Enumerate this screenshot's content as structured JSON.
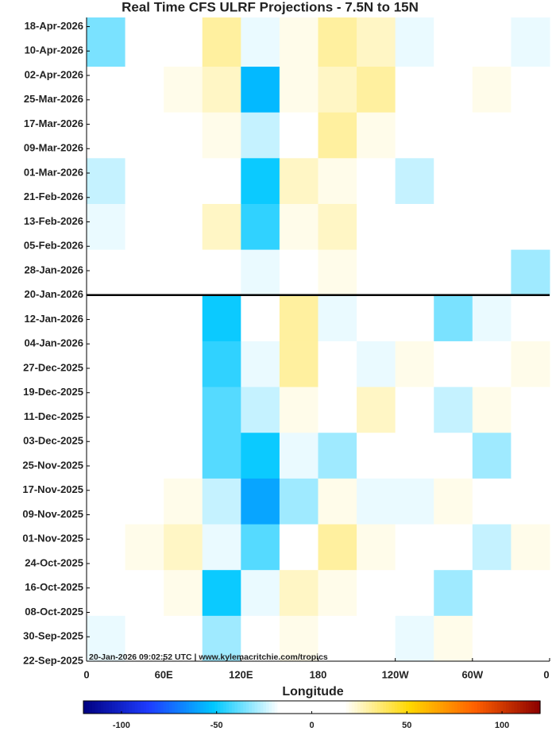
{
  "chart_data": {
    "type": "heatmap",
    "title": "Real Time CFS ULRF Projections - 7.5N to 15N",
    "x_label": "Longitude",
    "annotation": "20-Jan-2026 09:02:52 UTC | www.kylemacritchie.com/tropics",
    "xlim": [
      0,
      360
    ],
    "xticks": [
      0,
      {
        "value": 60,
        "label": "60E"
      },
      {
        "value": 120,
        "label": "120E"
      },
      180,
      {
        "value": 240,
        "label": "120W"
      },
      {
        "value": 300,
        "label": "60W"
      },
      {
        "value": 360,
        "label": "0"
      }
    ],
    "ylim": [
      "2025-09-22",
      "2026-04-21"
    ],
    "yticks": [
      {
        "value": "2025-09-22",
        "label": "22-Sep-2025"
      },
      {
        "value": "2025-09-30",
        "label": "30-Sep-2025"
      },
      {
        "value": "2025-10-08",
        "label": "08-Oct-2025"
      },
      {
        "value": "2025-10-16",
        "label": "16-Oct-2025"
      },
      {
        "value": "2025-10-24",
        "label": "24-Oct-2025"
      },
      {
        "value": "2025-11-01",
        "label": "01-Nov-2025"
      },
      {
        "value": "2025-11-09",
        "label": "09-Nov-2025"
      },
      {
        "value": "2025-11-17",
        "label": "17-Nov-2025"
      },
      {
        "value": "2025-11-25",
        "label": "25-Nov-2025"
      },
      {
        "value": "2025-12-03",
        "label": "03-Dec-2025"
      },
      {
        "value": "2025-12-11",
        "label": "11-Dec-2025"
      },
      {
        "value": "2025-12-19",
        "label": "19-Dec-2025"
      },
      {
        "value": "2025-12-27",
        "label": "27-Dec-2025"
      },
      {
        "value": "2026-01-04",
        "label": "04-Jan-2026"
      },
      {
        "value": "2026-01-12",
        "label": "12-Jan-2026"
      },
      {
        "value": "2026-01-20",
        "label": "20-Jan-2026"
      },
      {
        "value": "2026-01-28",
        "label": "28-Jan-2026"
      },
      {
        "value": "2026-02-05",
        "label": "05-Feb-2026"
      },
      {
        "value": "2026-02-13",
        "label": "13-Feb-2026"
      },
      {
        "value": "2026-02-21",
        "label": "21-Feb-2026"
      },
      {
        "value": "2026-03-01",
        "label": "01-Mar-2026"
      },
      {
        "value": "2026-03-09",
        "label": "09-Mar-2026"
      },
      {
        "value": "2026-03-17",
        "label": "17-Mar-2026"
      },
      {
        "value": "2026-03-25",
        "label": "25-Mar-2026"
      },
      {
        "value": "2026-04-02",
        "label": "02-Apr-2026"
      },
      {
        "value": "2026-04-10",
        "label": "10-Apr-2026"
      },
      {
        "value": "2026-04-18",
        "label": "18-Apr-2026"
      }
    ],
    "reference_line": "2026-01-20",
    "x_bins": [
      0,
      30,
      60,
      90,
      120,
      150,
      180,
      210,
      240,
      270,
      300,
      330,
      360
    ],
    "y_bins": [
      "2025-09-22",
      "2025-10-07",
      "2025-10-22",
      "2025-11-06",
      "2025-11-21",
      "2025-12-06",
      "2025-12-21",
      "2026-01-05",
      "2026-01-20",
      "2026-02-04",
      "2026-02-19",
      "2026-03-06",
      "2026-03-21",
      "2026-04-05",
      "2026-04-21"
    ],
    "values": [
      [
        -20,
        10,
        15,
        -30,
        10,
        20,
        15,
        -10,
        -20,
        20,
        -15,
        10
      ],
      [
        -10,
        15,
        20,
        -50,
        -20,
        25,
        20,
        -10,
        15,
        -30,
        10,
        15
      ],
      [
        5,
        20,
        25,
        -20,
        -40,
        -15,
        30,
        20,
        -10,
        15,
        -25,
        20
      ],
      [
        10,
        15,
        20,
        -25,
        -60,
        -30,
        20,
        -20,
        -20,
        20,
        -10,
        15
      ],
      [
        0,
        10,
        -10,
        -40,
        -50,
        -20,
        -30,
        15,
        10,
        -15,
        -30,
        10
      ],
      [
        -10,
        15,
        -5,
        -40,
        -25,
        20,
        -15,
        25,
        15,
        -25,
        20,
        15
      ],
      [
        -10,
        10,
        5,
        -45,
        -20,
        30,
        10,
        -20,
        20,
        -10,
        15,
        20
      ],
      [
        -15,
        5,
        10,
        -50,
        -15,
        30,
        -20,
        15,
        -10,
        -35,
        -20,
        -15
      ],
      [
        5,
        10,
        5,
        10,
        -20,
        15,
        20,
        10,
        -10,
        5,
        -15,
        -30
      ],
      [
        -20,
        15,
        10,
        25,
        -45,
        20,
        25,
        10,
        -15,
        15,
        10,
        -15
      ],
      [
        -25,
        5,
        0,
        15,
        -50,
        25,
        20,
        15,
        -25,
        5,
        -10,
        5
      ],
      [
        10,
        15,
        5,
        20,
        -25,
        15,
        30,
        20,
        -10,
        15,
        -5,
        10
      ],
      [
        -10,
        5,
        20,
        25,
        -55,
        20,
        25,
        30,
        15,
        -15,
        20,
        10
      ],
      [
        -35,
        10,
        -10,
        30,
        -20,
        20,
        30,
        25,
        -20,
        -15,
        10,
        -20
      ]
    ],
    "clim": [
      -120,
      120
    ],
    "colorbar_ticks": [
      -100,
      -50,
      0,
      50,
      100
    ],
    "colormap": [
      "#000080",
      "#1e3cff",
      "#00c8ff",
      "#ffffff",
      "#ffffff",
      "#ffd700",
      "#ff6000",
      "#8b0000"
    ]
  }
}
